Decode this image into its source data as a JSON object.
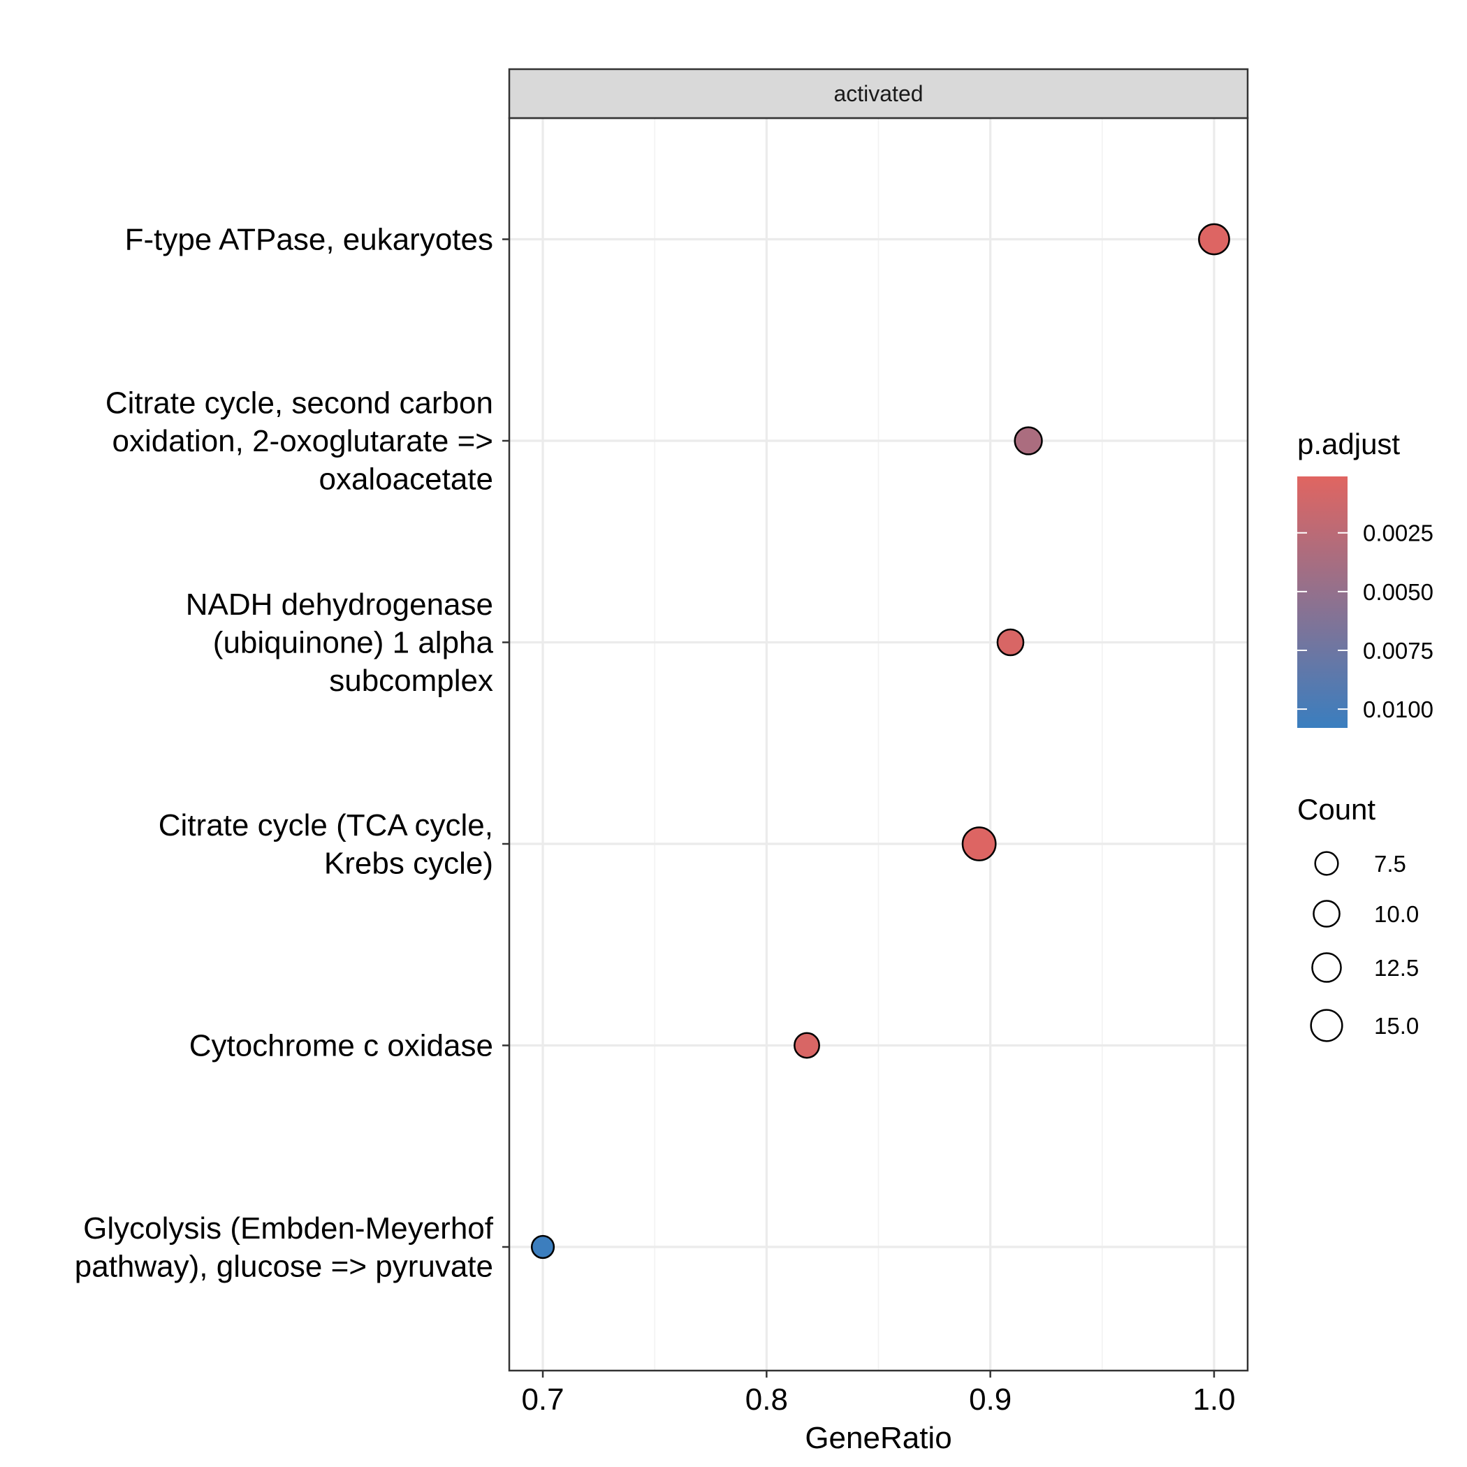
{
  "chart_data": {
    "type": "scatter",
    "facet": "activated",
    "xlabel": "GeneRatio",
    "ylabel": "",
    "xlim": [
      0.685,
      1.015
    ],
    "xticks": [
      0.7,
      0.8,
      0.9,
      1.0
    ],
    "xtick_labels": [
      "0.7",
      "0.8",
      "0.9",
      "1.0"
    ],
    "grid": true,
    "points": [
      {
        "label": [
          "F-type ATPase, eukaryotes"
        ],
        "x": 1.0,
        "count": 14,
        "p_adjust": 0.0003
      },
      {
        "label": [
          "Citrate cycle, second carbon",
          "oxidation, 2-oxoglutarate =>",
          "oxaloacetate"
        ],
        "x": 0.917,
        "count": 11,
        "p_adjust": 0.0035
      },
      {
        "label": [
          "NADH dehydrogenase",
          "(ubiquinone) 1 alpha",
          "subcomplex"
        ],
        "x": 0.909,
        "count": 10,
        "p_adjust": 0.0006
      },
      {
        "label": [
          "Citrate cycle (TCA cycle,",
          "Krebs cycle)"
        ],
        "x": 0.895,
        "count": 17,
        "p_adjust": 0.0003
      },
      {
        "label": [
          "Cytochrome c oxidase"
        ],
        "x": 0.818,
        "count": 9,
        "p_adjust": 0.0006
      },
      {
        "label": [
          "Glycolysis (Embden-Meyerhof",
          "pathway), glucose => pyruvate"
        ],
        "x": 0.7,
        "count": 7,
        "p_adjust": 0.0107
      }
    ],
    "color_legend": {
      "title": "p.adjust",
      "low_color": "#e06561",
      "high_color": "#3a7ebf",
      "range": [
        0.0001,
        0.0108
      ],
      "ticks": [
        0.0025,
        0.005,
        0.0075,
        0.01
      ],
      "tick_labels": [
        "0.0025",
        "0.0050",
        "0.0075",
        "0.0100"
      ]
    },
    "size_legend": {
      "title": "Count",
      "values": [
        7.5,
        10.0,
        12.5,
        15.0
      ],
      "labels": [
        "7.5",
        "10.0",
        "12.5",
        "15.0"
      ]
    }
  }
}
